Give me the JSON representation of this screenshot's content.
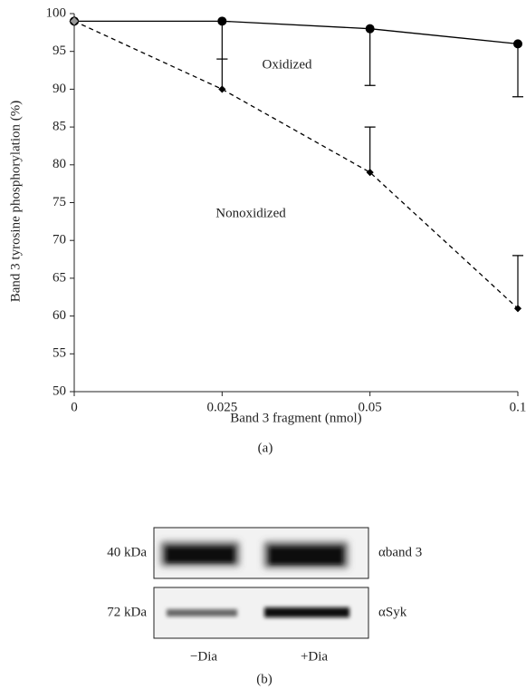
{
  "chart_data": {
    "type": "line",
    "y_label": "Band 3 tyrosine phosphorylation (%)",
    "x_label": "Band 3 fragment (nmol)",
    "caption": "(a)",
    "categories": [
      "0",
      "0.025",
      "0.05",
      "0.1"
    ],
    "series": [
      {
        "name": "Oxidized",
        "color": "#000000",
        "line_style": "solid",
        "marker": "circle",
        "error_direction": "down",
        "values": [
          99,
          99,
          98,
          96
        ],
        "errors": [
          null,
          5,
          7.5,
          7
        ]
      },
      {
        "name": "Nonoxidized",
        "color": "#000000",
        "line_style": "dashed",
        "marker": "diamond",
        "error_direction": "up",
        "values": [
          99,
          90,
          79,
          61
        ],
        "errors": [
          null,
          4,
          6,
          7
        ]
      }
    ],
    "ylim": [
      50,
      100
    ],
    "yticks": [
      50,
      55,
      60,
      65,
      70,
      75,
      80,
      85,
      90,
      95,
      100
    ]
  },
  "blot": {
    "rows": [
      {
        "size": "40 kDa",
        "antibody": "αband 3"
      },
      {
        "size": "72 kDa",
        "antibody": "αSyk"
      }
    ],
    "lanes": [
      "−Dia",
      "+Dia"
    ],
    "caption": "(b)"
  }
}
